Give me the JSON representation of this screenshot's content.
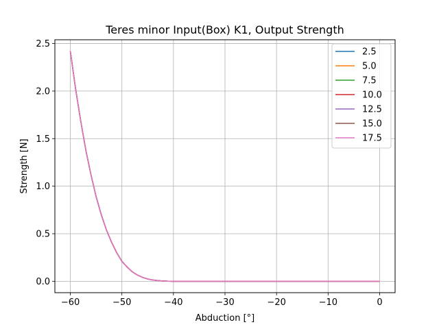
{
  "chart_data": {
    "type": "line",
    "title": "Teres minor Input(Box) K1, Output Strength",
    "xlabel": "Abduction [°]",
    "ylabel": "Strength [N]",
    "xlim": [
      -63,
      3
    ],
    "ylim": [
      -0.12,
      2.54
    ],
    "xticks": [
      -60,
      -50,
      -40,
      -30,
      -20,
      -10,
      0
    ],
    "xtick_labels": [
      "−60",
      "−50",
      "−40",
      "−30",
      "−20",
      "−10",
      "0"
    ],
    "yticks": [
      0.0,
      0.5,
      1.0,
      1.5,
      2.0,
      2.5
    ],
    "ytick_labels": [
      "0.0",
      "0.5",
      "1.0",
      "1.5",
      "2.0",
      "2.5"
    ],
    "grid": true,
    "legend_position": "top-right",
    "x": [
      -60,
      -59,
      -58,
      -57,
      -56,
      -55,
      -54,
      -53,
      -52,
      -51,
      -50,
      -49,
      -48,
      -47,
      -46,
      -45,
      -44,
      -43,
      -42,
      -41,
      -40,
      -35,
      -30,
      -25,
      -20,
      -15,
      -10,
      -5,
      0
    ],
    "series": [
      {
        "name": "2.5",
        "color": "#1f77b4",
        "values": [
          2.42,
          2.03,
          1.69,
          1.38,
          1.12,
          0.89,
          0.7,
          0.54,
          0.41,
          0.3,
          0.21,
          0.15,
          0.1,
          0.066,
          0.041,
          0.024,
          0.013,
          0.007,
          0.003,
          0.001,
          0.0,
          0,
          0,
          0,
          0,
          0,
          0,
          0,
          0
        ]
      },
      {
        "name": "5.0",
        "color": "#ff7f0e",
        "values": [
          2.42,
          2.03,
          1.69,
          1.38,
          1.12,
          0.89,
          0.7,
          0.54,
          0.41,
          0.3,
          0.21,
          0.15,
          0.1,
          0.066,
          0.041,
          0.024,
          0.013,
          0.007,
          0.003,
          0.001,
          0.0,
          0,
          0,
          0,
          0,
          0,
          0,
          0,
          0
        ]
      },
      {
        "name": "7.5",
        "color": "#2ca02c",
        "values": [
          2.42,
          2.03,
          1.69,
          1.38,
          1.12,
          0.89,
          0.7,
          0.54,
          0.41,
          0.3,
          0.21,
          0.15,
          0.1,
          0.066,
          0.041,
          0.024,
          0.013,
          0.007,
          0.003,
          0.001,
          0.0,
          0,
          0,
          0,
          0,
          0,
          0,
          0,
          0
        ]
      },
      {
        "name": "10.0",
        "color": "#d62728",
        "values": [
          2.42,
          2.03,
          1.69,
          1.38,
          1.12,
          0.89,
          0.7,
          0.54,
          0.41,
          0.3,
          0.21,
          0.15,
          0.1,
          0.066,
          0.041,
          0.024,
          0.013,
          0.007,
          0.003,
          0.001,
          0.0,
          0,
          0,
          0,
          0,
          0,
          0,
          0,
          0
        ]
      },
      {
        "name": "12.5",
        "color": "#9467bd",
        "values": [
          2.42,
          2.03,
          1.69,
          1.38,
          1.12,
          0.89,
          0.7,
          0.54,
          0.41,
          0.3,
          0.21,
          0.15,
          0.1,
          0.066,
          0.041,
          0.024,
          0.013,
          0.007,
          0.003,
          0.001,
          0.0,
          0,
          0,
          0,
          0,
          0,
          0,
          0,
          0
        ]
      },
      {
        "name": "15.0",
        "color": "#8c564b",
        "values": [
          2.42,
          2.03,
          1.69,
          1.38,
          1.12,
          0.89,
          0.7,
          0.54,
          0.41,
          0.3,
          0.21,
          0.15,
          0.1,
          0.066,
          0.041,
          0.024,
          0.013,
          0.007,
          0.003,
          0.001,
          0.0,
          0,
          0,
          0,
          0,
          0,
          0,
          0,
          0
        ]
      },
      {
        "name": "17.5",
        "color": "#e377c2",
        "values": [
          2.42,
          2.03,
          1.69,
          1.38,
          1.12,
          0.89,
          0.7,
          0.54,
          0.41,
          0.3,
          0.21,
          0.15,
          0.1,
          0.066,
          0.041,
          0.024,
          0.013,
          0.007,
          0.003,
          0.001,
          0.0,
          0,
          0,
          0,
          0,
          0,
          0,
          0,
          0
        ]
      }
    ]
  }
}
